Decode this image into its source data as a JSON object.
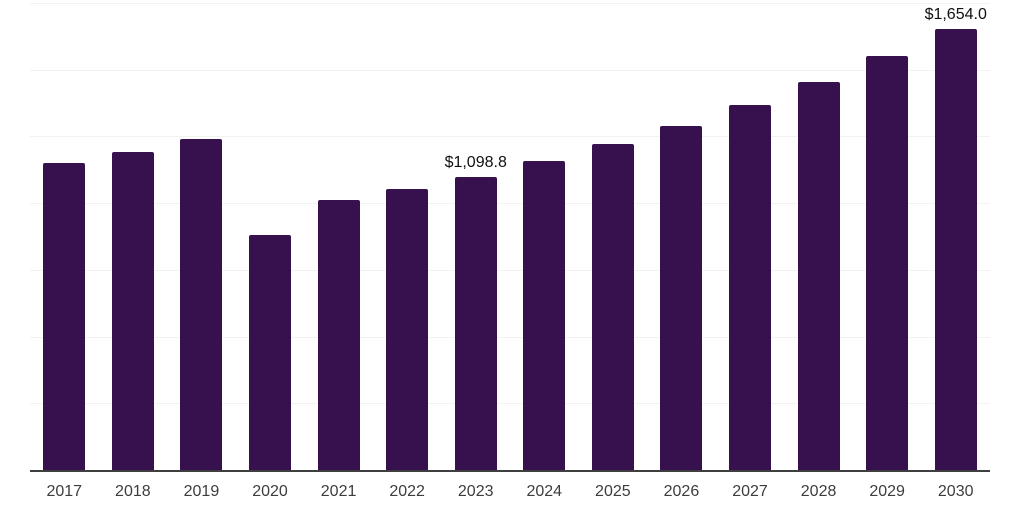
{
  "chart_data": {
    "type": "bar",
    "title": "",
    "xlabel": "",
    "ylabel": "",
    "categories": [
      "2017",
      "2018",
      "2019",
      "2020",
      "2021",
      "2022",
      "2023",
      "2024",
      "2025",
      "2026",
      "2027",
      "2028",
      "2029",
      "2030"
    ],
    "values": [
      1149,
      1190,
      1240,
      880,
      1012,
      1052,
      1098.8,
      1158,
      1221,
      1288,
      1368,
      1455,
      1551,
      1654.0
    ],
    "annotations": [
      {
        "category": "2023",
        "text": "$1,098.8"
      },
      {
        "category": "2030",
        "text": "$1,654.0"
      }
    ],
    "ylim": [
      0,
      1750
    ],
    "gridline_step": 250,
    "grid": "horizontal-only",
    "y_tick_labels_visible": false,
    "legend_position": "none",
    "colors": {
      "bar": "#36114D",
      "gridline": "#f2f2f2",
      "axis_line": "#3f3f3f",
      "tick_label": "#3d3d3d",
      "data_label": "#111111",
      "background": "#ffffff"
    }
  }
}
